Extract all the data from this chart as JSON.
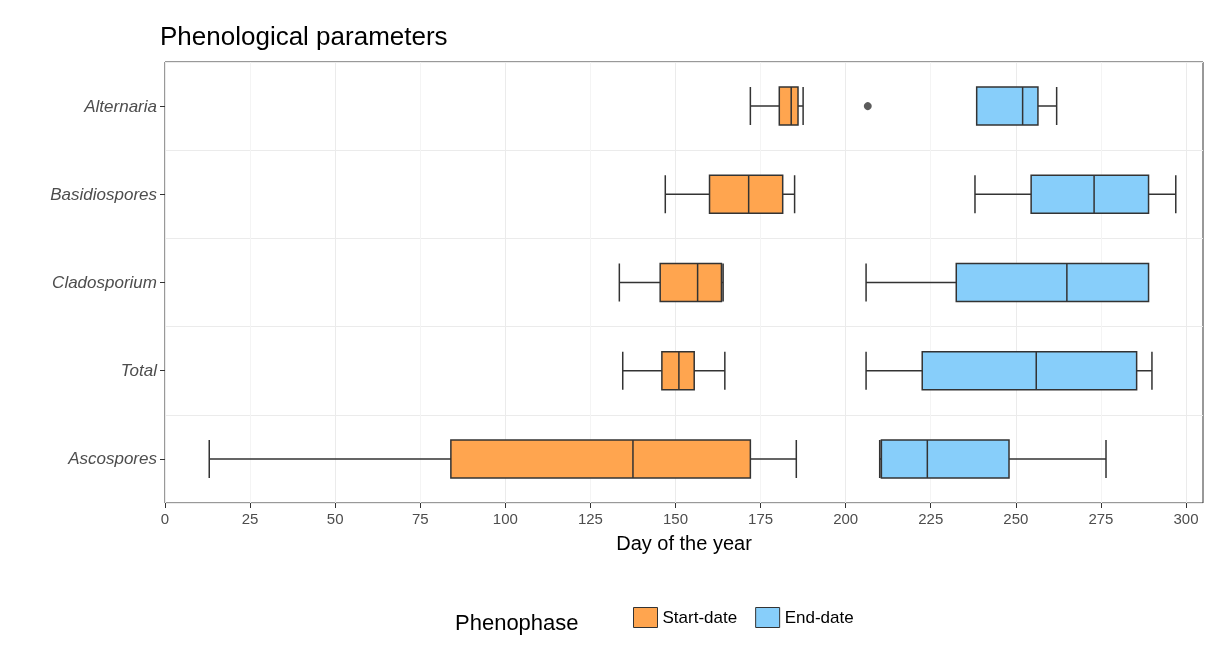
{
  "chart_data": {
    "type": "box",
    "orientation": "horizontal",
    "title": "Phenological parameters",
    "xlabel": "Day of the year",
    "legend_title": "Phenophase",
    "categories": [
      "Alternaria",
      "Basidiospores",
      "Cladosporium",
      "Total",
      "Ascospores"
    ],
    "xlim": [
      0,
      305
    ],
    "xticks": [
      0,
      25,
      50,
      75,
      100,
      125,
      150,
      175,
      200,
      225,
      250,
      275,
      300
    ],
    "grid": true,
    "legend": "bottom",
    "series": [
      {
        "name": "Start-date",
        "color": "#ffa54f",
        "boxes": [
          {
            "low": 172,
            "q1": 180.5,
            "median": 184,
            "q3": 186,
            "high": 187.5,
            "outliers": [
              206.5
            ]
          },
          {
            "low": 147,
            "q1": 160,
            "median": 171.5,
            "q3": 181.5,
            "high": 185
          },
          {
            "low": 133.5,
            "q1": 145.5,
            "median": 156.5,
            "q3": 163.5,
            "high": 164
          },
          {
            "low": 134.5,
            "q1": 146,
            "median": 151,
            "q3": 155.5,
            "high": 164.5
          },
          {
            "low": 13,
            "q1": 84,
            "median": 137.5,
            "q3": 172,
            "high": 185.5
          }
        ]
      },
      {
        "name": "End-date",
        "color": "#87cefa",
        "boxes": [
          {
            "low": 238.5,
            "q1": 238.5,
            "median": 252,
            "q3": 256.5,
            "high": 262
          },
          {
            "low": 238,
            "q1": 254.5,
            "median": 273,
            "q3": 289,
            "high": 297
          },
          {
            "low": 206,
            "q1": 232.5,
            "median": 265,
            "q3": 289,
            "high": 289
          },
          {
            "low": 206,
            "q1": 222.5,
            "median": 256,
            "q3": 285.5,
            "high": 290
          },
          {
            "low": 210,
            "q1": 210.5,
            "median": 224,
            "q3": 248,
            "high": 276.5
          }
        ]
      }
    ]
  }
}
